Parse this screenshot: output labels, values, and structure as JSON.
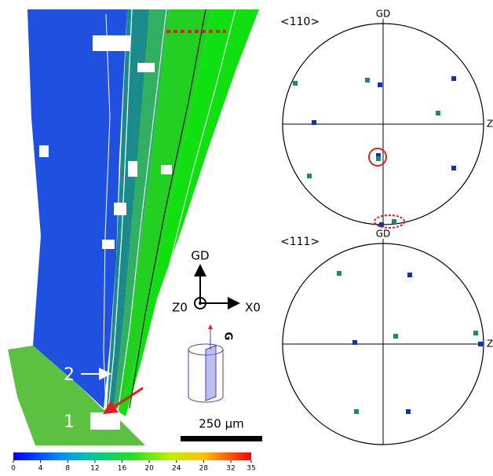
{
  "map": {
    "labels": [
      "2",
      "1"
    ],
    "axes": {
      "up": "GD",
      "center": "Z0",
      "right": "X0",
      "grip": "G"
    },
    "scale_bar": "250 µm"
  },
  "colorbar": {
    "range": [
      0,
      35
    ],
    "ticks": [
      0,
      4,
      8,
      12,
      16,
      20,
      24,
      28,
      32,
      35
    ]
  },
  "pole_figures": [
    {
      "title": "<110>",
      "top": "GD",
      "right": "Z"
    },
    {
      "title": "<111>",
      "top": "GD",
      "right": "Z"
    }
  ]
}
